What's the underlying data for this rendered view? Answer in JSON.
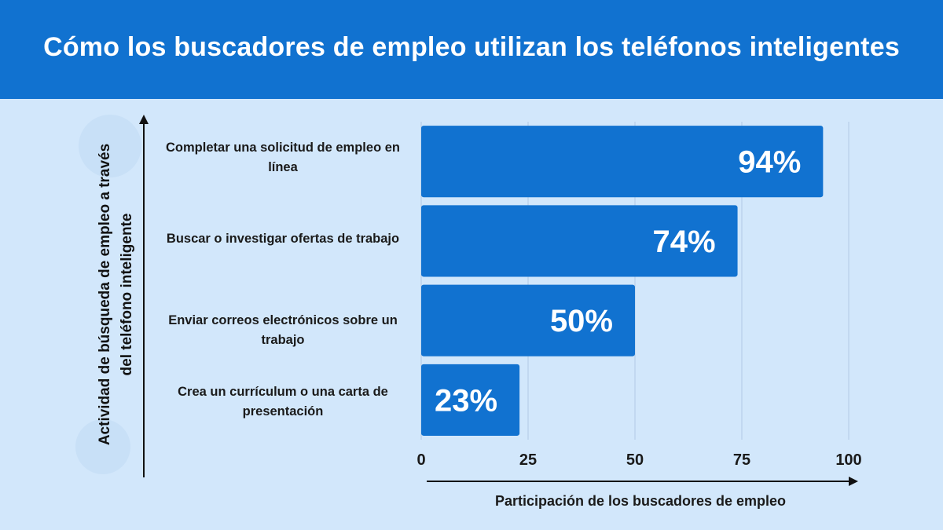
{
  "title": "Cómo los buscadores de empleo utilizan los teléfonos inteligentes",
  "colors": {
    "header": "#1172d0",
    "background": "#d2e7fb",
    "bar": "#1172d0",
    "grid": "#b7cfe8"
  },
  "chart_data": {
    "type": "bar",
    "orientation": "horizontal",
    "categories": [
      "Completar una solicitud de empleo en línea",
      "Buscar o investigar ofertas de trabajo",
      "Enviar correos electrónicos sobre un trabajo",
      "Crea un currículum o una carta de presentación"
    ],
    "values": [
      94,
      74,
      50,
      23
    ],
    "data_labels": [
      "94%",
      "74%",
      "50%",
      "23%"
    ],
    "xlabel": "Participación de los buscadores de empleo",
    "ylabel": "Actividad de búsqueda de empleo a través del teléfono inteligente",
    "xlim": [
      0,
      100
    ],
    "xticks": [
      "0",
      "25",
      "50",
      "75",
      "100"
    ],
    "grid": true
  }
}
